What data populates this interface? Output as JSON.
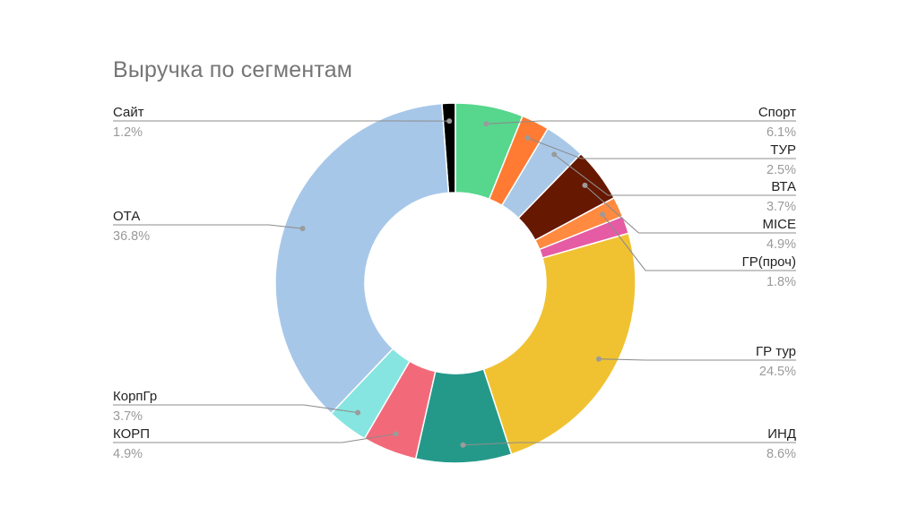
{
  "chart_data": {
    "type": "pie",
    "donut": true,
    "title": "Выручка по сегментам",
    "legend": "none",
    "slices": [
      {
        "name": "Сайт",
        "value": 1.2,
        "label": "1.2%",
        "color": "#000000",
        "side": "left"
      },
      {
        "name": "Спорт",
        "value": 6.1,
        "label": "6.1%",
        "color": "#57d68d",
        "side": "right"
      },
      {
        "name": "ТУР",
        "value": 2.5,
        "label": "2.5%",
        "color": "#ff7a32",
        "side": "right"
      },
      {
        "name": "ВТА",
        "value": 3.7,
        "label": "3.7%",
        "color": "#a9c8e8",
        "side": "right"
      },
      {
        "name": "MICE",
        "value": 4.9,
        "label": "4.9%",
        "color": "#661800",
        "side": "right"
      },
      {
        "name": "ГР(проч)",
        "value": 1.8,
        "label": "1.8%",
        "color": "#ff8a40",
        "side": "right"
      },
      {
        "name": "",
        "value": 1.6,
        "label": "",
        "color": "#e55ba4",
        "side": "none"
      },
      {
        "name": "ГР тур",
        "value": 24.5,
        "label": "24.5%",
        "color": "#f0c232",
        "side": "right"
      },
      {
        "name": "ИНД",
        "value": 8.6,
        "label": "8.6%",
        "color": "#24998a",
        "side": "right"
      },
      {
        "name": "КОРП",
        "value": 4.9,
        "label": "4.9%",
        "color": "#f26a7a",
        "side": "left"
      },
      {
        "name": "КорпГр",
        "value": 3.7,
        "label": "3.7%",
        "color": "#86e5e0",
        "side": "left"
      },
      {
        "name": "ОТА",
        "value": 36.8,
        "label": "36.8%",
        "color": "#a7c7e9",
        "side": "left"
      }
    ]
  }
}
